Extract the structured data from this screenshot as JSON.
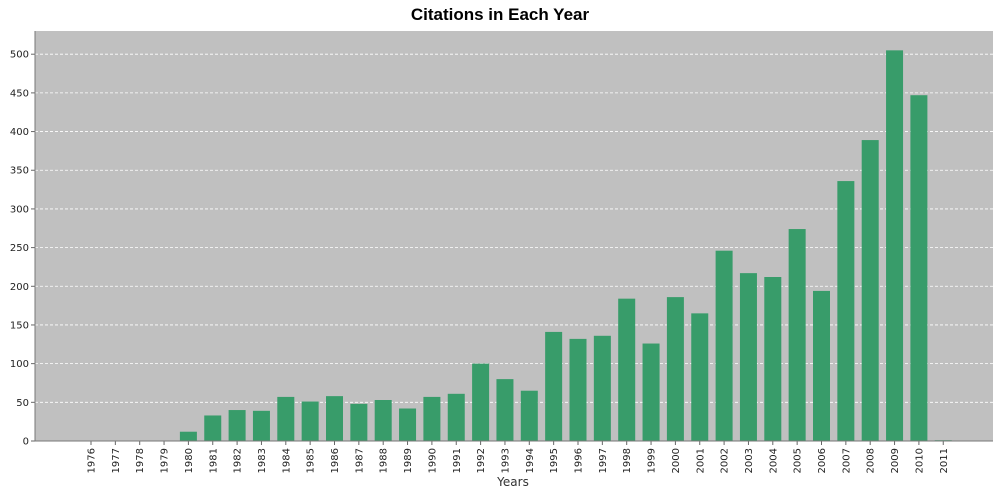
{
  "chart_data": {
    "type": "bar",
    "title": "Citations in Each Year",
    "xlabel": "Years",
    "ylabel": "",
    "categories": [
      "1976",
      "1977",
      "1978",
      "1979",
      "1980",
      "1981",
      "1982",
      "1983",
      "1984",
      "1985",
      "1986",
      "1987",
      "1988",
      "1989",
      "1990",
      "1991",
      "1992",
      "1993",
      "1994",
      "1995",
      "1996",
      "1997",
      "1998",
      "1999",
      "2000",
      "2001",
      "2002",
      "2003",
      "2004",
      "2005",
      "2006",
      "2007",
      "2008",
      "2009",
      "2010",
      "2011"
    ],
    "values": [
      0,
      0,
      0,
      0,
      12,
      33,
      40,
      39,
      57,
      51,
      58,
      48,
      53,
      42,
      57,
      61,
      100,
      80,
      65,
      141,
      132,
      136,
      184,
      126,
      186,
      165,
      246,
      217,
      212,
      274,
      194,
      336,
      389,
      505,
      447,
      1
    ],
    "ylim": [
      0,
      530
    ],
    "yticks": [
      0,
      50,
      100,
      150,
      200,
      250,
      300,
      350,
      400,
      450,
      500
    ],
    "grid": true,
    "colors": {
      "bar": "#389c6a",
      "plot_background": "#c0c0c0",
      "grid": "#ffffff"
    }
  }
}
